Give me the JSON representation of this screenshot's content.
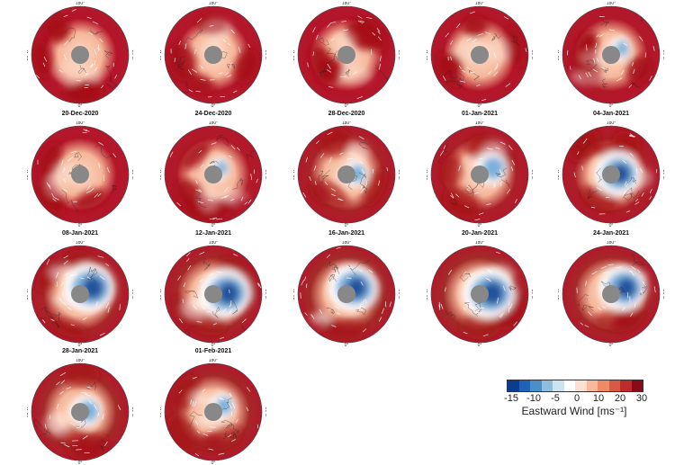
{
  "panels": [
    {
      "date": "",
      "jet": 1.0,
      "blue": 0.0
    },
    {
      "date": "",
      "jet": 0.95,
      "blue": 0.0
    },
    {
      "date": "",
      "jet": 1.0,
      "blue": 0.0
    },
    {
      "date": "",
      "jet": 0.95,
      "blue": 0.0
    },
    {
      "date": "",
      "jet": 0.9,
      "blue": 0.1
    },
    {
      "date": "20-Dec-2020",
      "jet": 0.95,
      "blue": 0.0
    },
    {
      "date": "24-Dec-2020",
      "jet": 0.85,
      "blue": 0.05
    },
    {
      "date": "28-Dec-2020",
      "jet": 0.6,
      "blue": 0.2
    },
    {
      "date": "01-Jan-2021",
      "jet": 0.7,
      "blue": 0.4
    },
    {
      "date": "04-Jan-2021",
      "jet": 0.7,
      "blue": 0.8
    },
    {
      "date": "08-Jan-2021",
      "jet": 0.55,
      "blue": 0.95
    },
    {
      "date": "12-Jan-2021",
      "jet": 0.5,
      "blue": 0.95
    },
    {
      "date": "16-Jan-2021",
      "jet": 0.4,
      "blue": 0.9
    },
    {
      "date": "20-Jan-2021",
      "jet": 0.4,
      "blue": 1.0
    },
    {
      "date": "24-Jan-2021",
      "jet": 0.5,
      "blue": 0.85
    },
    {
      "date": "28-Jan-2021",
      "jet": 0.45,
      "blue": 0.35
    },
    {
      "date": "01-Feb-2021",
      "jet": 0.5,
      "blue": 0.2
    }
  ],
  "colorbar": {
    "label": "Eastward Wind [ms⁻¹]",
    "ticks": [
      "-15",
      "-10",
      "-5",
      "0",
      "10",
      "20",
      "30"
    ],
    "colors": [
      "#0a3d8f",
      "#1f64b4",
      "#4a8fca",
      "#8fbde0",
      "#cde3f2",
      "#ffffff",
      "#fde0d0",
      "#f9b89a",
      "#ef8a66",
      "#d95a44",
      "#bd2b2b",
      "#8a0a1a"
    ]
  },
  "longitude_labels": [
    "90°W",
    "90°E",
    "0°",
    "180°"
  ],
  "colors": {
    "pole_cap": "#888888",
    "vectors": "#ffffff",
    "coastline": "#222222"
  }
}
